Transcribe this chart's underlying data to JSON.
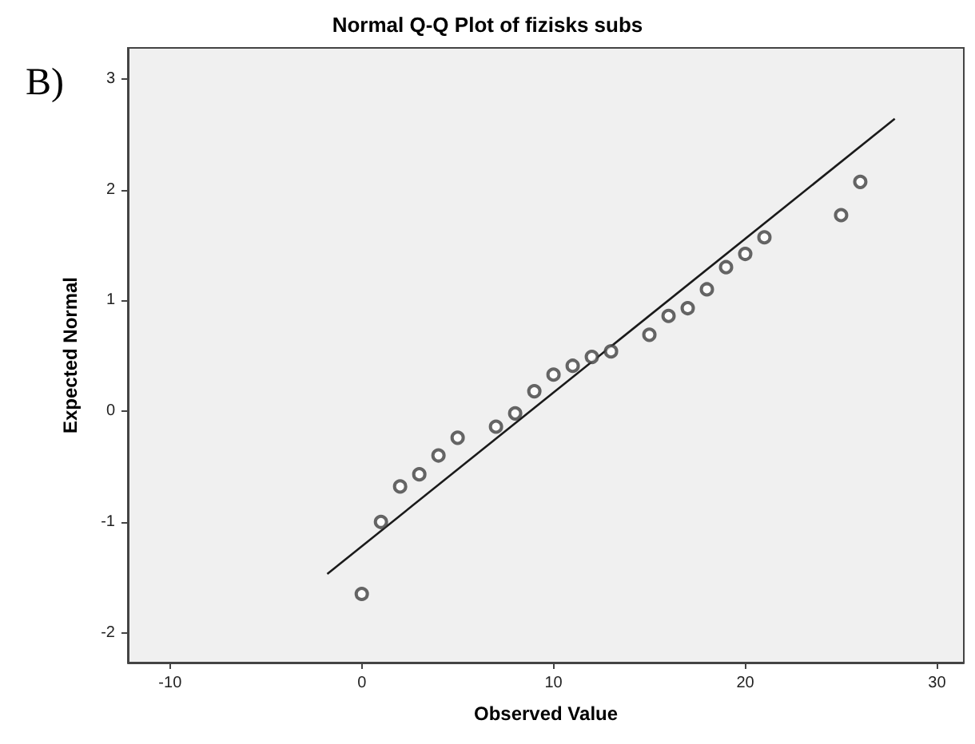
{
  "chart_data": {
    "type": "scatter",
    "title": "Normal Q-Q Plot of fizisks subs",
    "xlabel": "Observed Value",
    "ylabel": "Expected Normal",
    "annotations": [
      "B)"
    ],
    "marker": "circle",
    "grid": false,
    "xlim": [
      -12.2,
      31.4
    ],
    "xticks": [
      -10,
      0,
      10,
      20,
      30
    ],
    "ylim": [
      -2.27,
      3.28
    ],
    "yticks": [
      -2,
      -1,
      0,
      1,
      2,
      3
    ],
    "series": [
      {
        "color": "#404040",
        "x": [
          0,
          1,
          2,
          3,
          4,
          5,
          7,
          8,
          9,
          10,
          11,
          12,
          13,
          15,
          16,
          17,
          18,
          19,
          20,
          21,
          25,
          26
        ],
        "values": [
          -1.65,
          -1.0,
          -0.68,
          -0.57,
          -0.4,
          -0.24,
          -0.14,
          -0.02,
          0.18,
          0.33,
          0.41,
          0.49,
          0.54,
          0.69,
          0.86,
          0.93,
          1.1,
          1.3,
          1.42,
          1.57,
          1.77,
          2.07
        ]
      },
      {
        "type": "line",
        "color": "#1a1a1a",
        "marker": "none",
        "line_style": "solid",
        "x": [
          -1.8,
          27.8
        ],
        "values": [
          -1.47,
          2.64
        ]
      }
    ]
  }
}
